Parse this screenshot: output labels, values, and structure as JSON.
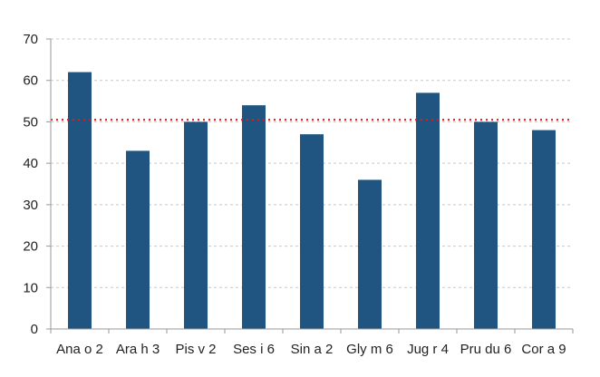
{
  "chart_data": {
    "type": "bar",
    "categories": [
      "Ana o 2",
      "Ara h 3",
      "Pis v 2",
      "Ses i 6",
      "Sin a 2",
      "Gly m 6",
      "Jug r 4",
      "Pru du 6",
      "Cor a 9"
    ],
    "values": [
      62,
      43,
      50,
      54,
      47,
      36,
      57,
      50,
      48
    ],
    "title": "",
    "xlabel": "",
    "ylabel": "",
    "ylim": [
      0,
      70
    ],
    "yticks": [
      0,
      10,
      20,
      30,
      40,
      50,
      60,
      70
    ],
    "grid": true,
    "reference_line": {
      "value": 50.5,
      "style": "dotted",
      "color": "#e8171b"
    },
    "bar_color": "#1f5580",
    "gridline_color": "#c8c8c8",
    "legend": "none"
  }
}
